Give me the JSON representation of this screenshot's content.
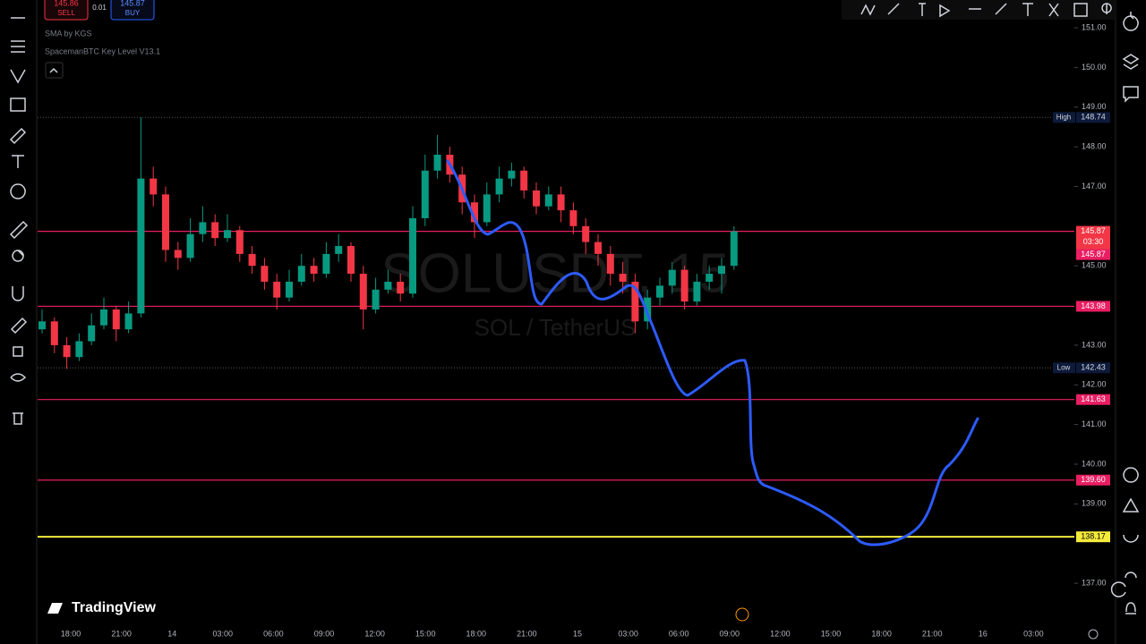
{
  "header": {
    "sell_price": "145.86",
    "sell": "SELL",
    "spread": "0.01",
    "buy_price": "145.87",
    "buy": "BUY",
    "indicators": [
      "SMA by KGS",
      "SpacemanBTC Key Level V13.1"
    ],
    "brand": "TradingView"
  },
  "chart_data": {
    "type": "candlestick",
    "title": "SOLUSDT, 15",
    "subtitle": "SOL / TetherUS",
    "ylim": [
      136.1,
      151.7
    ],
    "yticks": [
      {
        "value": 151,
        "label": "151.00"
      },
      {
        "value": 150,
        "label": "150.00"
      },
      {
        "value": 149,
        "label": "149.00"
      },
      {
        "value": 148,
        "label": "148.00"
      },
      {
        "value": 147,
        "label": "147.00"
      },
      {
        "value": 145,
        "label": "145.00"
      },
      {
        "value": 143,
        "label": "143.00"
      },
      {
        "value": 142,
        "label": "142.00"
      },
      {
        "value": 141,
        "label": "141.00"
      },
      {
        "value": 140,
        "label": "140.00"
      },
      {
        "value": 139,
        "label": "139.00"
      },
      {
        "value": 137,
        "label": "137.00"
      }
    ],
    "categories": [
      "18:00",
      "21:00",
      "14",
      "03:00",
      "06:00",
      "09:00",
      "12:00",
      "15:00",
      "18:00",
      "21:00",
      "15",
      "03:00",
      "06:00",
      "09:00",
      "12:00",
      "15:00",
      "18:00",
      "21:00",
      "16",
      "03:00"
    ],
    "up_color": "#089981",
    "down_color": "#f23645",
    "candles": [
      [
        143.4,
        143.9,
        143.3,
        143.6
      ],
      [
        143.6,
        143.7,
        142.8,
        143.0
      ],
      [
        143.0,
        143.2,
        142.4,
        142.7
      ],
      [
        142.7,
        143.3,
        142.6,
        143.1
      ],
      [
        143.1,
        143.8,
        143.0,
        143.5
      ],
      [
        143.5,
        144.2,
        143.4,
        143.9
      ],
      [
        143.9,
        144.0,
        143.1,
        143.4
      ],
      [
        143.4,
        144.1,
        143.3,
        143.8
      ],
      [
        143.8,
        148.74,
        143.7,
        147.2
      ],
      [
        147.2,
        147.5,
        146.5,
        146.8
      ],
      [
        146.8,
        147.0,
        145.1,
        145.4
      ],
      [
        145.4,
        145.6,
        144.9,
        145.2
      ],
      [
        145.2,
        146.2,
        145.1,
        145.8
      ],
      [
        145.8,
        146.5,
        145.6,
        146.1
      ],
      [
        146.1,
        146.3,
        145.5,
        145.7
      ],
      [
        145.7,
        146.3,
        145.6,
        145.9
      ],
      [
        145.9,
        146.0,
        145.1,
        145.3
      ],
      [
        145.3,
        145.5,
        144.8,
        145.0
      ],
      [
        145.0,
        145.2,
        144.4,
        144.6
      ],
      [
        144.6,
        144.8,
        143.9,
        144.2
      ],
      [
        144.2,
        144.9,
        144.1,
        144.6
      ],
      [
        144.6,
        145.3,
        144.5,
        145.0
      ],
      [
        145.0,
        145.2,
        144.6,
        144.8
      ],
      [
        144.8,
        145.6,
        144.7,
        145.3
      ],
      [
        145.3,
        145.8,
        145.1,
        145.5
      ],
      [
        145.5,
        145.6,
        144.6,
        144.8
      ],
      [
        144.8,
        145.0,
        143.4,
        143.9
      ],
      [
        143.9,
        144.7,
        143.8,
        144.4
      ],
      [
        144.4,
        144.9,
        144.3,
        144.6
      ],
      [
        144.6,
        144.8,
        144.1,
        144.3
      ],
      [
        144.3,
        146.5,
        144.2,
        146.2
      ],
      [
        146.2,
        147.8,
        146.0,
        147.4
      ],
      [
        147.4,
        148.3,
        147.2,
        147.8
      ],
      [
        147.8,
        148.0,
        147.1,
        147.3
      ],
      [
        147.3,
        147.5,
        146.3,
        146.6
      ],
      [
        146.6,
        146.8,
        145.7,
        146.1
      ],
      [
        146.1,
        147.1,
        146.0,
        146.8
      ],
      [
        146.8,
        147.5,
        146.6,
        147.2
      ],
      [
        147.2,
        147.6,
        147.0,
        147.4
      ],
      [
        147.4,
        147.5,
        146.7,
        146.9
      ],
      [
        146.9,
        147.1,
        146.3,
        146.5
      ],
      [
        146.5,
        147.0,
        146.4,
        146.8
      ],
      [
        146.8,
        147.0,
        146.1,
        146.4
      ],
      [
        146.4,
        146.6,
        145.8,
        146.0
      ],
      [
        146.0,
        146.2,
        145.3,
        145.6
      ],
      [
        145.6,
        145.8,
        145.0,
        145.3
      ],
      [
        145.3,
        145.5,
        144.5,
        144.8
      ],
      [
        144.8,
        145.1,
        144.3,
        144.6
      ],
      [
        144.6,
        144.8,
        143.3,
        143.6
      ],
      [
        143.6,
        144.4,
        143.4,
        144.2
      ],
      [
        144.2,
        144.7,
        144.0,
        144.5
      ],
      [
        144.5,
        145.1,
        144.3,
        144.9
      ],
      [
        144.9,
        145.0,
        143.9,
        144.1
      ],
      [
        144.1,
        144.8,
        144.0,
        144.6
      ],
      [
        144.6,
        145.0,
        144.4,
        144.8
      ],
      [
        144.8,
        145.2,
        144.3,
        145.0
      ],
      [
        145.0,
        146.0,
        144.9,
        145.87
      ]
    ],
    "levels": [
      {
        "value": 145.87,
        "label": "145.87",
        "color": "#e91e63"
      },
      {
        "value": 143.98,
        "label": "143.98",
        "color": "#e91e63"
      },
      {
        "value": 141.63,
        "label": "141.63",
        "color": "#e91e63"
      },
      {
        "value": 139.6,
        "label": "139.60",
        "color": "#e91e63"
      },
      {
        "value": 138.17,
        "label": "138.17",
        "color": "#f5eb3b"
      }
    ],
    "extremes": [
      {
        "name": "High",
        "value": 148.74,
        "label": "148.74"
      },
      {
        "name": "Low",
        "value": 142.43,
        "label": "142.43"
      }
    ],
    "last_price": {
      "value": 145.87,
      "label": "145.87",
      "countdown": "03:30",
      "bid_label": "145.87"
    }
  }
}
